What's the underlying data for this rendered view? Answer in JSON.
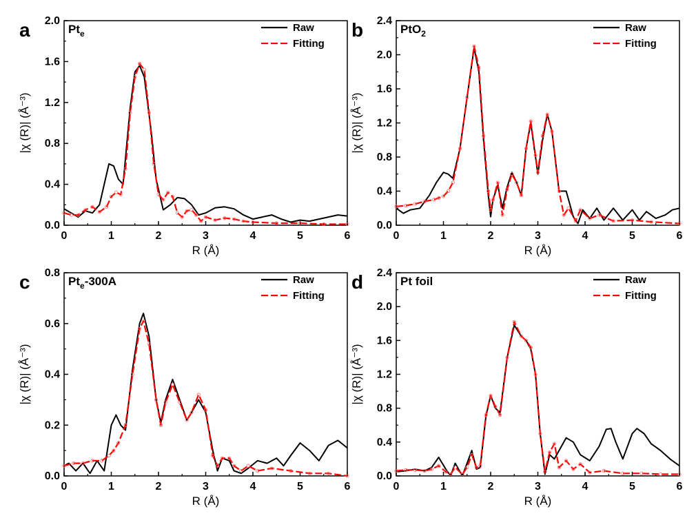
{
  "chart_data": [
    {
      "type": "line",
      "panel_letter": "a",
      "title": "Pt",
      "title_sub": "e",
      "title_suffix": "",
      "xlabel": "R (Å)",
      "ylabel": "|χ (R)| (Å⁻³)",
      "xlim": [
        0,
        6
      ],
      "ylim": [
        0,
        2.0
      ],
      "xticks": [
        "0",
        "1",
        "2",
        "3",
        "4",
        "5",
        "6"
      ],
      "yticks": [
        "0.0",
        "0.4",
        "0.8",
        "1.2",
        "1.6",
        "2.0"
      ],
      "legend": [
        "Raw",
        "Fitting"
      ],
      "legend_position": "top-right",
      "series": [
        {
          "name": "Raw",
          "color": "#000000",
          "style": "solid",
          "x": [
            0,
            0.15,
            0.3,
            0.45,
            0.6,
            0.75,
            0.95,
            1.05,
            1.15,
            1.25,
            1.4,
            1.5,
            1.6,
            1.7,
            1.85,
            1.95,
            2.1,
            2.25,
            2.4,
            2.55,
            2.7,
            2.85,
            3.0,
            3.2,
            3.4,
            3.6,
            3.8,
            4.0,
            4.2,
            4.4,
            4.6,
            4.8,
            5.0,
            5.2,
            5.4,
            5.6,
            5.8,
            6.0
          ],
          "y": [
            0.16,
            0.12,
            0.08,
            0.14,
            0.12,
            0.2,
            0.6,
            0.58,
            0.45,
            0.4,
            1.15,
            1.5,
            1.56,
            1.45,
            0.9,
            0.45,
            0.15,
            0.2,
            0.27,
            0.26,
            0.2,
            0.1,
            0.12,
            0.17,
            0.18,
            0.16,
            0.1,
            0.06,
            0.08,
            0.1,
            0.06,
            0.03,
            0.05,
            0.04,
            0.06,
            0.08,
            0.1,
            0.09
          ]
        },
        {
          "name": "Fitting",
          "color": "#ff0000",
          "style": "dashed",
          "x": [
            0,
            0.15,
            0.3,
            0.45,
            0.6,
            0.75,
            0.9,
            1.0,
            1.1,
            1.2,
            1.3,
            1.4,
            1.5,
            1.6,
            1.7,
            1.8,
            1.9,
            2.0,
            2.1,
            2.2,
            2.3,
            2.4,
            2.5,
            2.6,
            2.7,
            2.8,
            2.9,
            3.0,
            3.2,
            3.4,
            3.6,
            3.8,
            4.0,
            4.5,
            5.0,
            5.5,
            6.0
          ],
          "y": [
            0.12,
            0.1,
            0.1,
            0.15,
            0.18,
            0.13,
            0.18,
            0.28,
            0.32,
            0.3,
            0.55,
            1.1,
            1.45,
            1.58,
            1.52,
            1.1,
            0.6,
            0.3,
            0.25,
            0.32,
            0.28,
            0.12,
            0.08,
            0.14,
            0.15,
            0.1,
            0.04,
            0.08,
            0.05,
            0.07,
            0.06,
            0.04,
            0.03,
            0.02,
            0.02,
            0.01,
            0.01
          ]
        }
      ]
    },
    {
      "type": "line",
      "panel_letter": "b",
      "title": "PtO",
      "title_sub": "2",
      "title_suffix": "",
      "xlabel": "R (Å)",
      "ylabel": "|χ (R)| (Å⁻³)",
      "xlim": [
        0,
        6
      ],
      "ylim": [
        0,
        2.4
      ],
      "xticks": [
        "0",
        "1",
        "2",
        "3",
        "4",
        "5",
        "6"
      ],
      "yticks": [
        "0.0",
        "0.4",
        "0.8",
        "1.2",
        "1.6",
        "2.0",
        "2.4"
      ],
      "legend": [
        "Raw",
        "Fitting"
      ],
      "legend_position": "top-right",
      "series": [
        {
          "name": "Raw",
          "color": "#000000",
          "style": "solid",
          "x": [
            0,
            0.15,
            0.3,
            0.5,
            0.7,
            0.85,
            1.0,
            1.1,
            1.2,
            1.35,
            1.5,
            1.65,
            1.75,
            1.85,
            1.95,
            2.0,
            2.05,
            2.15,
            2.25,
            2.35,
            2.45,
            2.55,
            2.65,
            2.75,
            2.85,
            2.95,
            3.0,
            3.1,
            3.2,
            3.3,
            3.45,
            3.6,
            3.75,
            3.85,
            3.95,
            4.1,
            4.25,
            4.4,
            4.6,
            4.8,
            5.0,
            5.15,
            5.3,
            5.5,
            5.7,
            5.85,
            6.0
          ],
          "y": [
            0.2,
            0.14,
            0.18,
            0.2,
            0.35,
            0.5,
            0.62,
            0.6,
            0.55,
            0.9,
            1.5,
            2.08,
            1.8,
            1.0,
            0.35,
            0.1,
            0.3,
            0.47,
            0.2,
            0.45,
            0.62,
            0.5,
            0.35,
            0.9,
            1.2,
            0.8,
            0.6,
            1.0,
            1.3,
            1.1,
            0.4,
            0.4,
            0.1,
            0.02,
            0.18,
            0.08,
            0.2,
            0.06,
            0.2,
            0.06,
            0.18,
            0.06,
            0.16,
            0.08,
            0.12,
            0.18,
            0.2
          ]
        },
        {
          "name": "Fitting",
          "color": "#ff0000",
          "style": "dashed",
          "x": [
            0,
            0.2,
            0.4,
            0.6,
            0.8,
            0.9,
            1.0,
            1.1,
            1.2,
            1.35,
            1.5,
            1.65,
            1.75,
            1.85,
            1.95,
            2.0,
            2.05,
            2.15,
            2.25,
            2.35,
            2.45,
            2.55,
            2.65,
            2.75,
            2.85,
            2.95,
            3.0,
            3.1,
            3.2,
            3.3,
            3.45,
            3.55,
            3.65,
            3.8,
            3.9,
            4.1,
            4.3,
            4.6,
            5.0,
            5.4,
            6.0
          ],
          "y": [
            0.22,
            0.23,
            0.25,
            0.28,
            0.3,
            0.32,
            0.34,
            0.4,
            0.5,
            0.9,
            1.5,
            2.1,
            1.85,
            1.05,
            0.4,
            0.18,
            0.3,
            0.5,
            0.12,
            0.42,
            0.6,
            0.5,
            0.35,
            0.9,
            1.22,
            0.82,
            0.62,
            1.05,
            1.3,
            1.1,
            0.4,
            0.12,
            0.2,
            0.05,
            0.18,
            0.08,
            0.12,
            0.05,
            0.06,
            0.04,
            0.02
          ]
        }
      ]
    },
    {
      "type": "line",
      "panel_letter": "c",
      "title": "Pt",
      "title_sub": "e",
      "title_suffix": "-300A",
      "xlabel": "R (Å)",
      "ylabel": "|χ (R)| (Å⁻³)",
      "xlim": [
        0,
        6
      ],
      "ylim": [
        0,
        0.8
      ],
      "xticks": [
        "0",
        "1",
        "2",
        "3",
        "4",
        "5",
        "6"
      ],
      "yticks": [
        "0.0",
        "0.2",
        "0.4",
        "0.6",
        "0.8"
      ],
      "legend": [
        "Raw",
        "Fitting"
      ],
      "legend_position": "top-right",
      "series": [
        {
          "name": "Raw",
          "color": "#000000",
          "style": "solid",
          "x": [
            0,
            0.1,
            0.25,
            0.4,
            0.55,
            0.7,
            0.85,
            1.0,
            1.1,
            1.2,
            1.3,
            1.45,
            1.6,
            1.68,
            1.8,
            1.95,
            2.05,
            2.15,
            2.3,
            2.45,
            2.6,
            2.7,
            2.85,
            3.0,
            3.15,
            3.25,
            3.35,
            3.5,
            3.6,
            3.75,
            3.9,
            4.1,
            4.3,
            4.5,
            4.65,
            4.8,
            5.0,
            5.2,
            5.4,
            5.6,
            5.8,
            6.0
          ],
          "y": [
            0.04,
            0.05,
            0.02,
            0.05,
            0.01,
            0.06,
            0.02,
            0.2,
            0.24,
            0.2,
            0.18,
            0.42,
            0.6,
            0.64,
            0.55,
            0.3,
            0.21,
            0.3,
            0.38,
            0.3,
            0.22,
            0.25,
            0.3,
            0.25,
            0.1,
            0.02,
            0.07,
            0.06,
            0.02,
            0.01,
            0.03,
            0.06,
            0.05,
            0.07,
            0.04,
            0.08,
            0.13,
            0.1,
            0.06,
            0.12,
            0.14,
            0.11
          ]
        },
        {
          "name": "Fitting",
          "color": "#ff0000",
          "style": "dashed",
          "x": [
            0,
            0.2,
            0.4,
            0.6,
            0.8,
            0.95,
            1.05,
            1.15,
            1.3,
            1.45,
            1.6,
            1.68,
            1.8,
            1.95,
            2.05,
            2.15,
            2.3,
            2.45,
            2.6,
            2.7,
            2.85,
            3.0,
            3.15,
            3.25,
            3.35,
            3.5,
            3.6,
            3.75,
            3.9,
            4.1,
            4.4,
            4.8,
            5.2,
            5.6,
            6.0
          ],
          "y": [
            0.04,
            0.05,
            0.05,
            0.06,
            0.06,
            0.08,
            0.1,
            0.13,
            0.2,
            0.4,
            0.58,
            0.61,
            0.52,
            0.3,
            0.2,
            0.29,
            0.36,
            0.29,
            0.22,
            0.25,
            0.32,
            0.26,
            0.08,
            0.04,
            0.07,
            0.07,
            0.04,
            0.02,
            0.04,
            0.02,
            0.03,
            0.02,
            0.01,
            0.01,
            0.0
          ]
        }
      ]
    },
    {
      "type": "line",
      "panel_letter": "d",
      "title": "Pt foil",
      "title_sub": "",
      "title_suffix": "",
      "xlabel": "R (Å)",
      "ylabel": "|χ (R)| (Å⁻³)",
      "xlim": [
        0,
        6
      ],
      "ylim": [
        0,
        2.4
      ],
      "xticks": [
        "0",
        "1",
        "2",
        "3",
        "4",
        "5",
        "6"
      ],
      "yticks": [
        "0.0",
        "0.4",
        "0.8",
        "1.2",
        "1.6",
        "2.0",
        "2.4"
      ],
      "legend": [
        "Raw",
        "Fitting"
      ],
      "legend_position": "top-right",
      "series": [
        {
          "name": "Raw",
          "color": "#000000",
          "style": "solid",
          "x": [
            0,
            0.2,
            0.4,
            0.6,
            0.75,
            0.9,
            1.05,
            1.15,
            1.25,
            1.4,
            1.5,
            1.6,
            1.7,
            1.78,
            1.9,
            2.0,
            2.1,
            2.2,
            2.35,
            2.5,
            2.65,
            2.75,
            2.85,
            2.95,
            3.05,
            3.15,
            3.25,
            3.35,
            3.45,
            3.6,
            3.75,
            3.9,
            4.1,
            4.3,
            4.45,
            4.55,
            4.65,
            4.8,
            5.0,
            5.1,
            5.25,
            5.4,
            5.6,
            5.8,
            6.0
          ],
          "y": [
            0.05,
            0.06,
            0.08,
            0.06,
            0.1,
            0.22,
            0.08,
            0.0,
            0.15,
            0.0,
            0.15,
            0.3,
            0.08,
            0.1,
            0.7,
            0.95,
            0.8,
            0.75,
            1.4,
            1.78,
            1.65,
            1.6,
            1.5,
            1.2,
            0.5,
            0.02,
            0.25,
            0.2,
            0.3,
            0.45,
            0.4,
            0.25,
            0.18,
            0.35,
            0.55,
            0.56,
            0.4,
            0.2,
            0.5,
            0.56,
            0.5,
            0.38,
            0.3,
            0.2,
            0.12
          ]
        },
        {
          "name": "Fitting",
          "color": "#ff0000",
          "style": "dashed",
          "x": [
            0,
            0.2,
            0.4,
            0.6,
            0.75,
            0.9,
            1.05,
            1.15,
            1.25,
            1.4,
            1.5,
            1.6,
            1.7,
            1.78,
            1.9,
            2.0,
            2.1,
            2.2,
            2.35,
            2.5,
            2.65,
            2.75,
            2.85,
            2.95,
            3.05,
            3.15,
            3.25,
            3.35,
            3.45,
            3.6,
            3.75,
            3.9,
            4.1,
            4.4,
            4.8,
            5.2,
            5.6,
            6.0
          ],
          "y": [
            0.06,
            0.07,
            0.07,
            0.06,
            0.08,
            0.12,
            0.05,
            0.02,
            0.1,
            0.02,
            0.1,
            0.25,
            0.1,
            0.12,
            0.72,
            0.95,
            0.82,
            0.72,
            1.4,
            1.82,
            1.65,
            1.6,
            1.52,
            1.2,
            0.5,
            0.05,
            0.28,
            0.38,
            0.1,
            0.18,
            0.08,
            0.14,
            0.04,
            0.06,
            0.03,
            0.03,
            0.02,
            0.02
          ]
        }
      ]
    }
  ]
}
